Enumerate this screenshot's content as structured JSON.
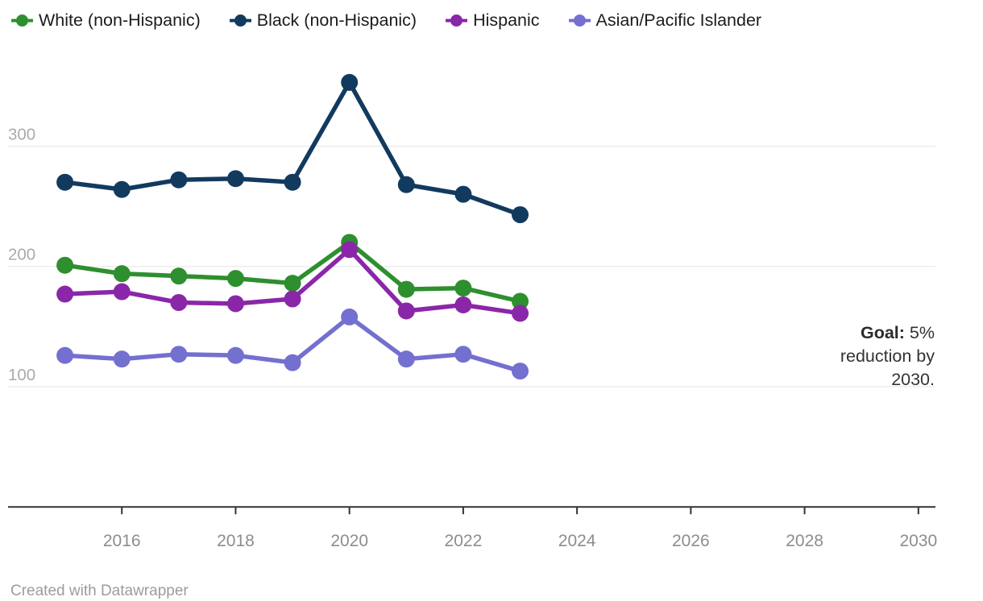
{
  "chart_data": {
    "type": "line",
    "x": [
      2015,
      2016,
      2017,
      2018,
      2019,
      2020,
      2021,
      2022,
      2023
    ],
    "series": [
      {
        "name": "White (non-Hispanic)",
        "color": "#2e8f2e",
        "values": [
          201,
          194,
          192,
          190,
          186,
          220,
          181,
          182,
          171
        ]
      },
      {
        "name": "Black (non-Hispanic)",
        "color": "#123a5f",
        "values": [
          270,
          264,
          272,
          273,
          270,
          353,
          268,
          260,
          243
        ]
      },
      {
        "name": "Hispanic",
        "color": "#8a27a8",
        "values": [
          177,
          179,
          170,
          169,
          173,
          214,
          163,
          168,
          161
        ]
      },
      {
        "name": "Asian/Pacific Islander",
        "color": "#7470d0",
        "values": [
          126,
          123,
          127,
          126,
          120,
          158,
          123,
          127,
          113
        ]
      }
    ],
    "title": "",
    "xlabel": "",
    "ylabel": "",
    "xticks": [
      2016,
      2018,
      2020,
      2022,
      2024,
      2026,
      2028,
      2030
    ],
    "yticks": [
      100,
      200,
      300
    ],
    "xlim": [
      2014,
      2030.3
    ],
    "ylim": [
      0,
      360
    ],
    "grid": "horizontal",
    "legend_position": "top",
    "annotation": {
      "bold": "Goal:",
      "rest": " 5% reduction by 2030.",
      "full_text": "Goal: 5% reduction by 2030."
    }
  },
  "colors": {
    "gridline": "#e6e6e6",
    "axis_line": "#333333",
    "background": "#ffffff"
  },
  "footer": {
    "text": "Created with Datawrapper"
  }
}
